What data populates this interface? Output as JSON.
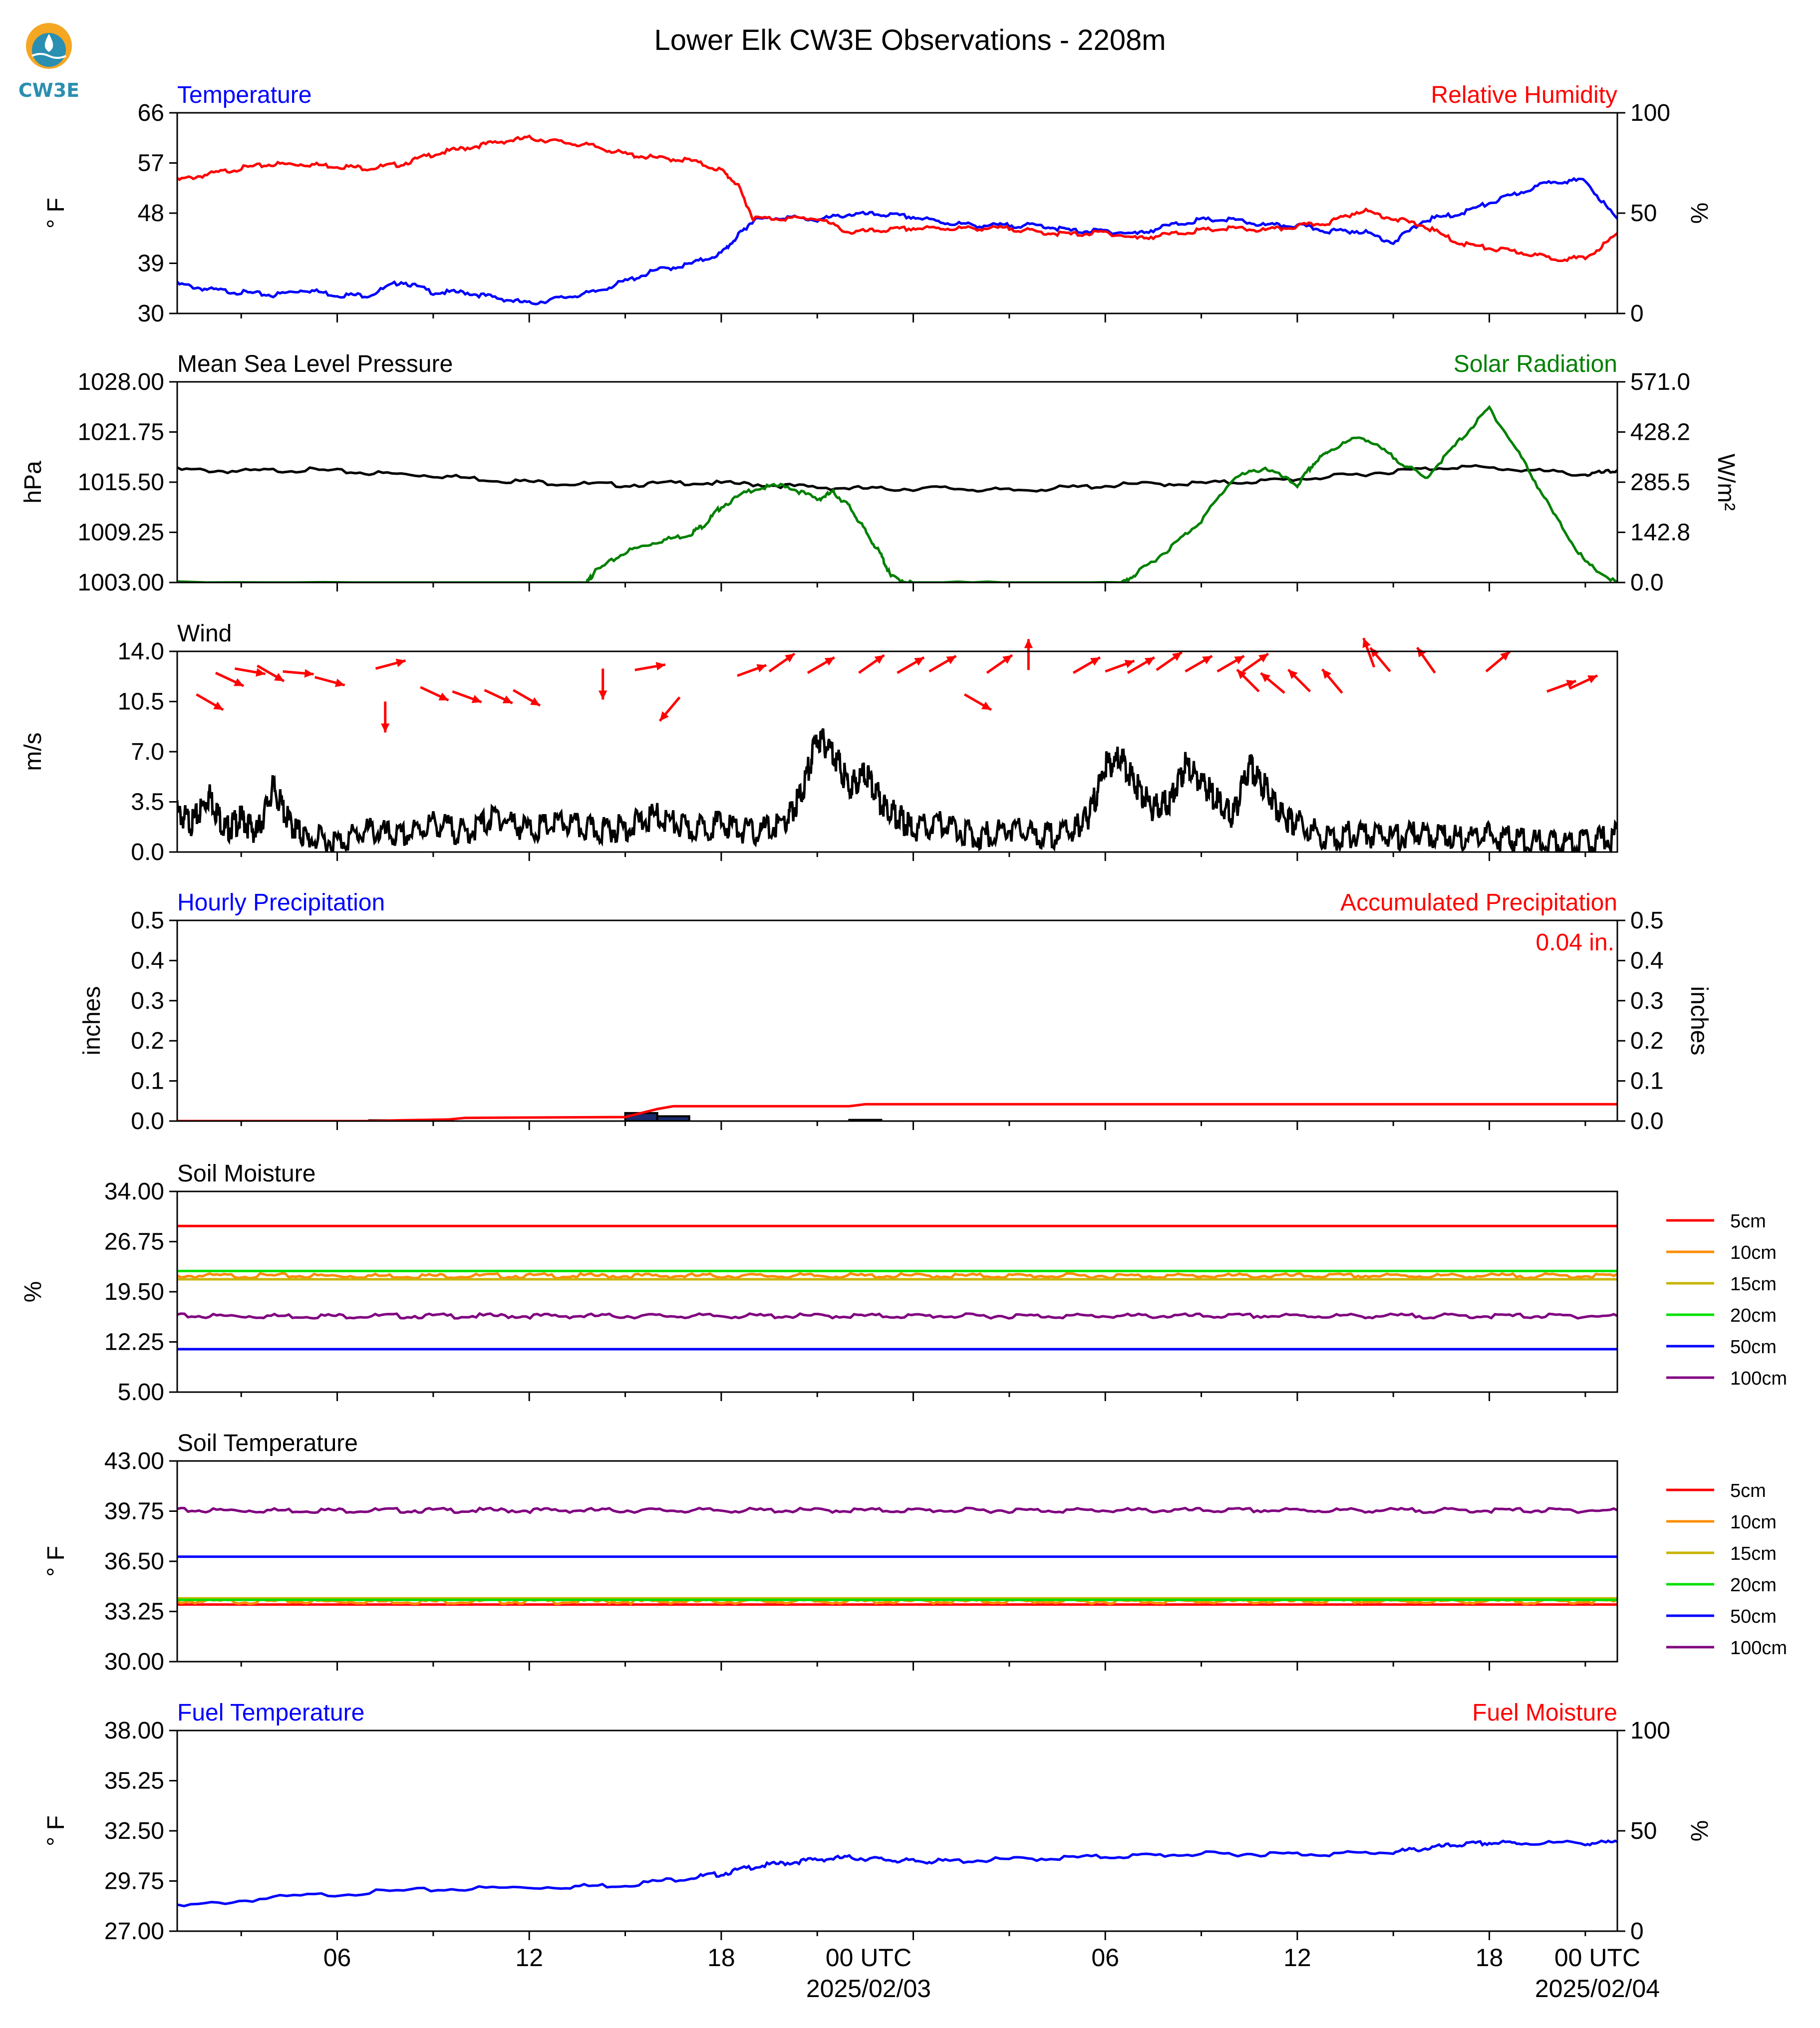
{
  "title": "Lower Elk CW3E Observations - 2208m",
  "logo": {
    "text": "CW3E",
    "color": "#2a8fb0",
    "accent": "#f5a623"
  },
  "time": {
    "xlim": [
      0,
      45
    ],
    "tick_labels": [
      {
        "hour": 5,
        "label": "06"
      },
      {
        "hour": 11,
        "label": "12"
      },
      {
        "hour": 17,
        "label": "18"
      },
      {
        "hour": 23,
        "label": "00 UTC",
        "sub": "2025/02/03"
      },
      {
        "hour": 29,
        "label": "06"
      },
      {
        "hour": 35,
        "label": "12"
      },
      {
        "hour": 41,
        "label": "18"
      },
      {
        "hour": 47,
        "label": "00 UTC",
        "sub": "2025/02/04"
      }
    ]
  },
  "colors": {
    "blue": "#0000ff",
    "red": "#ff0000",
    "green": "#008000",
    "black": "#000000"
  },
  "chart_data": [
    {
      "type": "line",
      "left_title": "Temperature",
      "left_title_color": "#0000ff",
      "right_title": "Relative Humidity",
      "right_title_color": "#ff0000",
      "ylabel": "° F",
      "ylabel_right": "%",
      "ylim": [
        30,
        66
      ],
      "yticks": [
        "30",
        "39",
        "48",
        "57",
        "66"
      ],
      "ylim_right": [
        0,
        100
      ],
      "yticks_right": [
        "0",
        "50",
        "100"
      ],
      "series": [
        {
          "color": "#0000ff",
          "axis": "left",
          "x": [
            0,
            1,
            2,
            3,
            4,
            5,
            6,
            7,
            8,
            9,
            10,
            11,
            12,
            13,
            14,
            15,
            16,
            17,
            17.5,
            18,
            19,
            20,
            21,
            22,
            23,
            24,
            25,
            26,
            27,
            28,
            29,
            30,
            31,
            32,
            33,
            34,
            35,
            36,
            37,
            38,
            39,
            40,
            41,
            42,
            43,
            44,
            45
          ],
          "y": [
            35.5,
            34.5,
            34,
            33.5,
            34.5,
            33.5,
            33.5,
            36,
            34,
            34,
            33,
            32,
            33,
            34,
            36,
            38,
            39,
            41,
            44,
            47,
            47.5,
            47,
            48,
            48,
            47.5,
            46.5,
            46,
            46,
            46,
            45,
            45,
            44.5,
            46,
            47,
            47,
            46,
            46,
            45,
            45,
            43,
            47,
            48,
            50,
            52,
            54,
            54,
            47
          ]
        },
        {
          "color": "#ff0000",
          "axis": "right",
          "x": [
            0,
            1,
            2,
            3,
            4,
            5,
            6,
            7,
            8,
            9,
            10,
            11,
            12,
            13,
            14,
            15,
            16,
            17,
            17.5,
            18,
            19,
            20,
            21,
            22,
            23,
            24,
            25,
            26,
            27,
            28,
            29,
            30,
            31,
            32,
            33,
            34,
            35,
            36,
            37,
            38,
            39,
            40,
            41,
            42,
            43,
            44,
            45
          ],
          "y": [
            67,
            70,
            73,
            75,
            75,
            74,
            73,
            75,
            80,
            83,
            86,
            88,
            86,
            84,
            80,
            78,
            77,
            72,
            65,
            48,
            48,
            48,
            41,
            42,
            43,
            43,
            43,
            43,
            41,
            40,
            41,
            38,
            40,
            42,
            43,
            42,
            44,
            46,
            52,
            48,
            44,
            36,
            33,
            31,
            28,
            28,
            40
          ]
        }
      ]
    },
    {
      "type": "line",
      "left_title": "Mean Sea Level Pressure",
      "left_title_color": "#000000",
      "right_title": "Solar Radiation",
      "right_title_color": "#008000",
      "ylabel": "hPa",
      "ylabel_right": "W/m²",
      "ylim": [
        1003,
        1028
      ],
      "yticks": [
        "1003.00",
        "1009.25",
        "1015.50",
        "1021.75",
        "1028.00"
      ],
      "ylim_right": [
        0,
        571
      ],
      "yticks_right": [
        "0.0",
        "142.8",
        "285.5",
        "428.2",
        "571.0"
      ],
      "series": [
        {
          "color": "#000000",
          "axis": "left",
          "x": [
            0,
            2,
            4,
            6,
            8,
            10,
            12,
            14,
            16,
            18,
            20,
            22,
            24,
            26,
            28,
            30,
            32,
            34,
            36,
            38,
            40,
            42,
            44,
            45
          ],
          "y": [
            1017.2,
            1017.0,
            1017.2,
            1016.8,
            1016.5,
            1015.9,
            1015.5,
            1015.3,
            1015.6,
            1015.4,
            1015.0,
            1014.8,
            1014.9,
            1014.6,
            1015.0,
            1015.4,
            1015.5,
            1015.8,
            1016.3,
            1017.0,
            1017.6,
            1017.2,
            1016.6,
            1017.0
          ]
        },
        {
          "color": "#008000",
          "axis": "right",
          "x": [
            0,
            12.8,
            13,
            14,
            15,
            16,
            16.5,
            17,
            18,
            19,
            20,
            20.5,
            21,
            21.5,
            22,
            22.3,
            23,
            29.5,
            30,
            31,
            32,
            33,
            34,
            35,
            35.5,
            36,
            37,
            38,
            39,
            40,
            41,
            42,
            43,
            44,
            45
          ],
          "y": [
            0,
            0,
            30,
            90,
            120,
            140,
            170,
            220,
            270,
            280,
            240,
            260,
            220,
            150,
            80,
            20,
            0,
            0,
            30,
            100,
            180,
            300,
            330,
            280,
            340,
            380,
            420,
            360,
            300,
            400,
            500,
            360,
            200,
            60,
            0
          ]
        }
      ]
    },
    {
      "type": "line",
      "left_title": "Wind",
      "left_title_color": "#000000",
      "ylabel": "m/s",
      "ylim": [
        0,
        14
      ],
      "yticks": [
        "0.0",
        "3.5",
        "7.0",
        "10.5",
        "14.0"
      ],
      "series": [
        {
          "color": "#000000",
          "axis": "left",
          "x": [
            0,
            0.5,
            1,
            1.5,
            2,
            2.5,
            3,
            3.5,
            4,
            5,
            6,
            7,
            8,
            9,
            10,
            11,
            12,
            13,
            14,
            15,
            16,
            17,
            18,
            19,
            19.5,
            20,
            20.5,
            21,
            21.5,
            22,
            22.5,
            23,
            24,
            25,
            26,
            27,
            28,
            28.5,
            29,
            29.5,
            30,
            30.5,
            31,
            31.5,
            32,
            32.5,
            33,
            33.5,
            34,
            34.5,
            35,
            36,
            37,
            38,
            39,
            40,
            41,
            42,
            43,
            44,
            45
          ],
          "y": [
            3.2,
            2.5,
            4.5,
            2.0,
            2.8,
            1.8,
            5.0,
            2.5,
            1.5,
            1.2,
            2.0,
            1.5,
            2.5,
            1.8,
            3.0,
            2.0,
            2.5,
            2.0,
            2.2,
            3.0,
            2.0,
            2.5,
            1.8,
            2.5,
            4.5,
            8.5,
            7.5,
            5.0,
            6.0,
            4.0,
            3.0,
            2.0,
            2.5,
            1.5,
            2.2,
            1.5,
            2.0,
            3.0,
            6.5,
            7.0,
            5.0,
            3.5,
            4.0,
            6.5,
            5.5,
            4.0,
            3.0,
            6.5,
            5.0,
            3.0,
            2.5,
            1.5,
            1.8,
            1.5,
            1.8,
            1.6,
            1.6,
            1.2,
            1.0,
            1.2,
            1.6
          ]
        }
      ]
    },
    {
      "type": "bar",
      "left_title": "Hourly Precipitation",
      "left_title_color": "#0000ff",
      "right_title": "Accumulated Precipitation",
      "right_title_color": "#ff0000",
      "annotation": "0.04 in.",
      "ylabel": "inches",
      "ylabel_right": "inches",
      "ylim": [
        0,
        0.5
      ],
      "yticks": [
        "0.0",
        "0.1",
        "0.2",
        "0.3",
        "0.4",
        "0.5"
      ],
      "ylim_right": [
        0,
        0.5
      ],
      "yticks_right": [
        "0.0",
        "0.1",
        "0.2",
        "0.3",
        "0.4",
        "0.5"
      ],
      "bars": [
        {
          "x0": 6,
          "x1": 7,
          "value": 0.002
        },
        {
          "x0": 14,
          "x1": 15,
          "value": 0.02
        },
        {
          "x0": 15,
          "x1": 16,
          "value": 0.012
        },
        {
          "x0": 21,
          "x1": 22,
          "value": 0.003
        }
      ],
      "accum": {
        "color": "#ff0000",
        "x": [
          0,
          6,
          7,
          8.5,
          9,
          14,
          15,
          15.5,
          21,
          21.5,
          45
        ],
        "y": [
          0,
          0,
          0.002,
          0.004,
          0.008,
          0.01,
          0.03,
          0.037,
          0.037,
          0.042,
          0.042
        ]
      }
    },
    {
      "type": "line",
      "left_title": "Soil Moisture",
      "left_title_color": "#000000",
      "ylabel": "%",
      "ylim": [
        5,
        34
      ],
      "yticks": [
        "5.00",
        "12.25",
        "19.50",
        "26.75",
        "34.00"
      ],
      "legend": [
        "5cm",
        "10cm",
        "15cm",
        "20cm",
        "50cm",
        "100cm"
      ],
      "series": [
        {
          "name": "5cm",
          "color": "#ff0000",
          "level": 29.0
        },
        {
          "name": "10cm",
          "color": "#ff8c00",
          "level": 21.8
        },
        {
          "name": "15cm",
          "color": "#c8b400",
          "level": 21.3
        },
        {
          "name": "20cm",
          "color": "#00e000",
          "level": 22.5
        },
        {
          "name": "50cm",
          "color": "#0000ff",
          "level": 11.2
        },
        {
          "name": "100cm",
          "color": "#800080",
          "level": 16.0
        }
      ]
    },
    {
      "type": "line",
      "left_title": "Soil Temperature",
      "left_title_color": "#000000",
      "ylabel": "° F",
      "ylim": [
        30,
        43
      ],
      "yticks": [
        "30.00",
        "33.25",
        "36.50",
        "39.75",
        "43.00"
      ],
      "legend": [
        "5cm",
        "10cm",
        "15cm",
        "20cm",
        "50cm",
        "100cm"
      ],
      "series": [
        {
          "name": "5cm",
          "color": "#ff0000",
          "level": 33.7
        },
        {
          "name": "10cm",
          "color": "#ff8c00",
          "level": 33.9
        },
        {
          "name": "15cm",
          "color": "#c8b400",
          "level": 34.1
        },
        {
          "name": "20cm",
          "color": "#00e000",
          "level": 34.0
        },
        {
          "name": "50cm",
          "color": "#0000ff",
          "level": 36.8
        },
        {
          "name": "100cm",
          "color": "#800080",
          "level": 39.8
        }
      ]
    },
    {
      "type": "line",
      "left_title": "Fuel Temperature",
      "left_title_color": "#0000ff",
      "right_title": "Fuel Moisture",
      "right_title_color": "#ff0000",
      "ylabel": "° F",
      "ylabel_right": "%",
      "ylim": [
        27,
        38
      ],
      "yticks": [
        "27.00",
        "29.75",
        "32.50",
        "35.25",
        "38.00"
      ],
      "ylim_right": [
        0,
        100
      ],
      "yticks_right": [
        "0",
        "50",
        "100"
      ],
      "series": [
        {
          "color": "#0000ff",
          "axis": "left",
          "x": [
            0,
            3,
            6,
            9,
            12,
            14,
            16,
            17,
            18,
            19,
            20,
            21,
            22,
            23,
            24,
            26,
            28,
            30,
            32,
            34,
            36,
            38,
            39,
            40,
            41,
            42,
            44,
            45
          ],
          "y": [
            28.4,
            28.9,
            29.2,
            29.4,
            29.5,
            29.6,
            30.0,
            30.2,
            30.6,
            30.8,
            31.0,
            31.1,
            31.0,
            30.9,
            30.9,
            31.0,
            31.1,
            31.2,
            31.3,
            31.3,
            31.3,
            31.4,
            31.6,
            31.8,
            31.9,
            31.9,
            31.9,
            31.9
          ]
        }
      ]
    }
  ]
}
